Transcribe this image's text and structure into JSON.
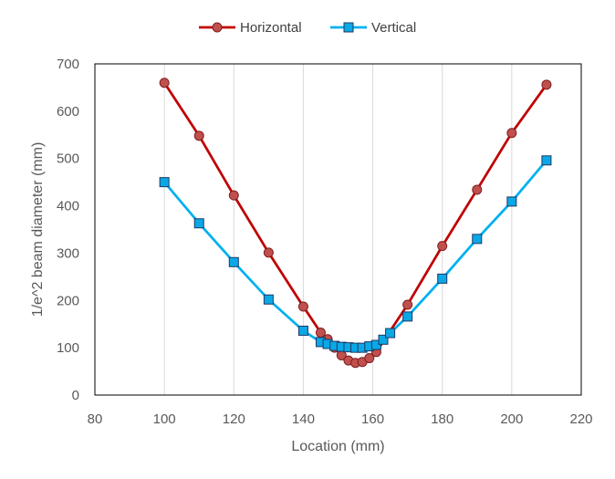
{
  "chart_data": {
    "type": "line",
    "xlabel": "Location (mm)",
    "ylabel": "1/e^2 beam diameter (mm)",
    "xlim": [
      80,
      220
    ],
    "ylim": [
      0,
      700
    ],
    "xticks": [
      80,
      100,
      120,
      140,
      160,
      180,
      200,
      220
    ],
    "yticks": [
      0,
      100,
      200,
      300,
      400,
      500,
      600,
      700
    ],
    "grid": "vertical",
    "legend": "top-center",
    "series": [
      {
        "name": "Horizontal",
        "color": "#c00000",
        "marker": "circle",
        "marker_fill": "#c0504d",
        "x": [
          100,
          110,
          120,
          130,
          140,
          145,
          147,
          149,
          151,
          153,
          155,
          157,
          159,
          161,
          170,
          180,
          190,
          200,
          210
        ],
        "y": [
          660,
          548,
          422,
          301,
          187,
          132,
          118,
          100,
          84,
          73,
          68,
          70,
          78,
          91,
          191,
          315,
          434,
          554,
          656
        ]
      },
      {
        "name": "Vertical",
        "color": "#00b0f0",
        "marker": "square",
        "marker_fill": "#0aa8e6",
        "x": [
          100,
          110,
          120,
          130,
          140,
          145,
          147,
          149,
          151,
          153,
          155,
          157,
          159,
          161,
          163,
          165,
          170,
          180,
          190,
          200,
          210
        ],
        "y": [
          450,
          363,
          281,
          202,
          136,
          112,
          108,
          104,
          102,
          101,
          100,
          100,
          103,
          106,
          117,
          131,
          166,
          246,
          330,
          409,
          496
        ]
      }
    ]
  }
}
